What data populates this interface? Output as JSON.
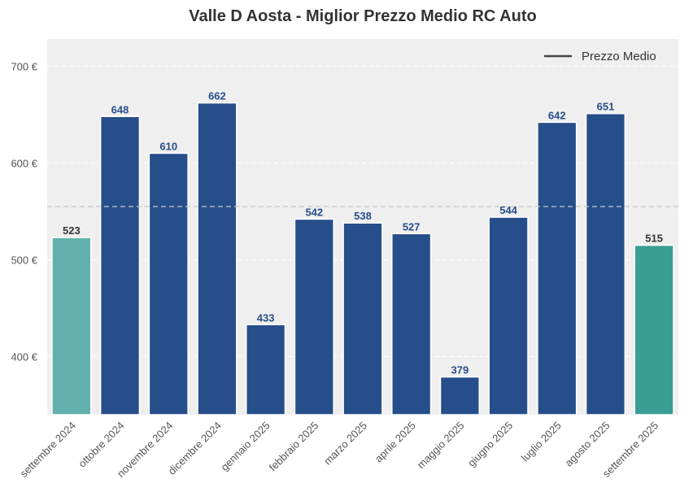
{
  "chart_data": {
    "type": "bar",
    "title": "Valle D Aosta - Miglior Prezzo Medio RC Auto",
    "xlabel": "",
    "ylabel": "",
    "categories": [
      "settembre 2024",
      "ottobre 2024",
      "novembre 2024",
      "dicembre 2024",
      "gennaio 2025",
      "febbraio 2025",
      "marzo 2025",
      "aprile 2025",
      "maggio 2025",
      "giugno 2025",
      "luglio 2025",
      "agosto 2025",
      "settembre 2025"
    ],
    "values": [
      523,
      648,
      610,
      662,
      433,
      542,
      538,
      527,
      379,
      544,
      642,
      651,
      515
    ],
    "value_labels": [
      "523",
      "648",
      "610",
      "662",
      "433",
      "542",
      "538",
      "527",
      "379",
      "544",
      "642",
      "651",
      "515"
    ],
    "bar_colors": [
      "#62b0ad",
      "#264e8a",
      "#264e8a",
      "#264e8a",
      "#264e8a",
      "#264e8a",
      "#264e8a",
      "#264e8a",
      "#264e8a",
      "#264e8a",
      "#264e8a",
      "#264e8a",
      "#3a9e95"
    ],
    "label_colors": [
      "#333333",
      "#264e8a",
      "#264e8a",
      "#264e8a",
      "#264e8a",
      "#264e8a",
      "#264e8a",
      "#264e8a",
      "#264e8a",
      "#264e8a",
      "#264e8a",
      "#264e8a",
      "#333333"
    ],
    "ylim": [
      340,
      728
    ],
    "yticks": [
      400,
      500,
      600,
      700
    ],
    "ytick_labels": [
      "400 €",
      "500 €",
      "600 €",
      "700 €"
    ],
    "average_line": {
      "value": 555,
      "legend_label": "Prezzo Medio"
    },
    "grid": true,
    "legend_position": "top-right",
    "background_color": "#efefef"
  }
}
